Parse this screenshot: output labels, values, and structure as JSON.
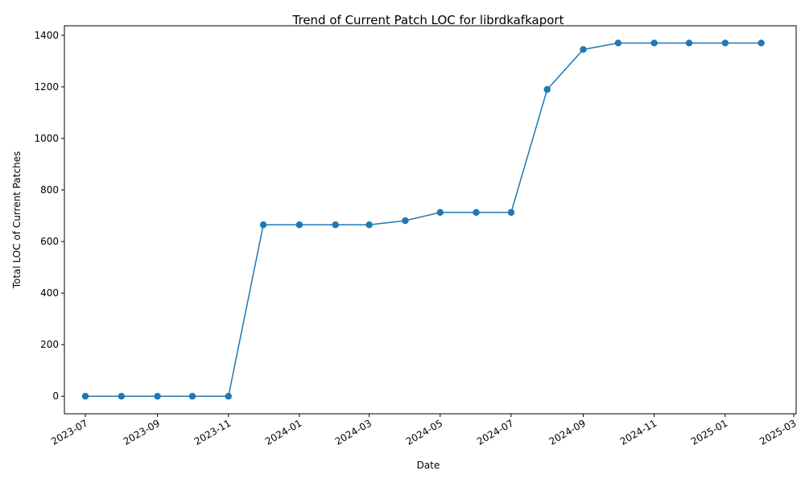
{
  "chart_data": {
    "type": "line",
    "title": "Trend of Current Patch LOC for librdkafkaport",
    "xlabel": "Date",
    "ylabel": "Total LOC of Current Patches",
    "x_tick_labels": [
      "2023-07",
      "2023-09",
      "2023-11",
      "2024-01",
      "2024-03",
      "2024-05",
      "2024-07",
      "2024-09",
      "2024-11",
      "2025-01",
      "2025-03"
    ],
    "y_tick_labels": [
      "0",
      "200",
      "400",
      "600",
      "800",
      "1000",
      "1200",
      "1400"
    ],
    "y_ticks": [
      0,
      200,
      400,
      600,
      800,
      1000,
      1200,
      1400
    ],
    "x_range": [
      "2023-06-13",
      "2025-03-03"
    ],
    "ylim": [
      -68,
      1437
    ],
    "grid": false,
    "series": [
      {
        "color": "#1f77b4",
        "marker": "circle",
        "points": [
          {
            "x": "2023-07-01",
            "y": 0
          },
          {
            "x": "2023-08-01",
            "y": 0
          },
          {
            "x": "2023-09-01",
            "y": 0
          },
          {
            "x": "2023-10-01",
            "y": 0
          },
          {
            "x": "2023-11-01",
            "y": 0
          },
          {
            "x": "2023-12-01",
            "y": 665
          },
          {
            "x": "2024-01-01",
            "y": 665
          },
          {
            "x": "2024-02-01",
            "y": 665
          },
          {
            "x": "2024-03-01",
            "y": 665
          },
          {
            "x": "2024-04-01",
            "y": 681
          },
          {
            "x": "2024-05-01",
            "y": 713
          },
          {
            "x": "2024-06-01",
            "y": 713
          },
          {
            "x": "2024-07-01",
            "y": 713
          },
          {
            "x": "2024-08-01",
            "y": 1190
          },
          {
            "x": "2024-09-01",
            "y": 1345
          },
          {
            "x": "2024-10-01",
            "y": 1370
          },
          {
            "x": "2024-11-01",
            "y": 1370
          },
          {
            "x": "2024-12-01",
            "y": 1370
          },
          {
            "x": "2025-01-01",
            "y": 1370
          },
          {
            "x": "2025-02-01",
            "y": 1370
          }
        ]
      }
    ]
  }
}
